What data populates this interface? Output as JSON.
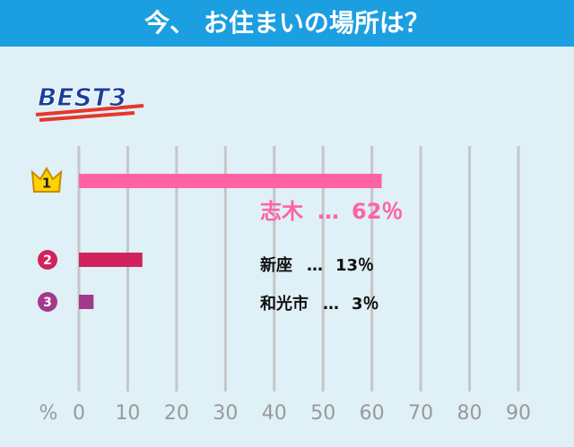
{
  "chart_data": {
    "type": "bar",
    "orientation": "horizontal",
    "title": "今、 お住まいの場所は？",
    "badge": "BEST3",
    "ranks": [
      "1",
      "2",
      "3"
    ],
    "categories": [
      "志木",
      "新座",
      "和光市"
    ],
    "separator": "…",
    "values": [
      62,
      13,
      3
    ],
    "value_labels": [
      "62％",
      "13％",
      "3％"
    ],
    "colors": [
      "#ff62a5",
      "#d0235c",
      "#a3398c"
    ],
    "label_colors": [
      "#ff62a5",
      "#111111",
      "#111111"
    ],
    "x_label": "%",
    "xlim": [
      0,
      90
    ],
    "xticks": [
      0,
      10,
      20,
      30,
      40,
      50,
      60,
      70,
      80,
      90
    ],
    "grid": true
  }
}
